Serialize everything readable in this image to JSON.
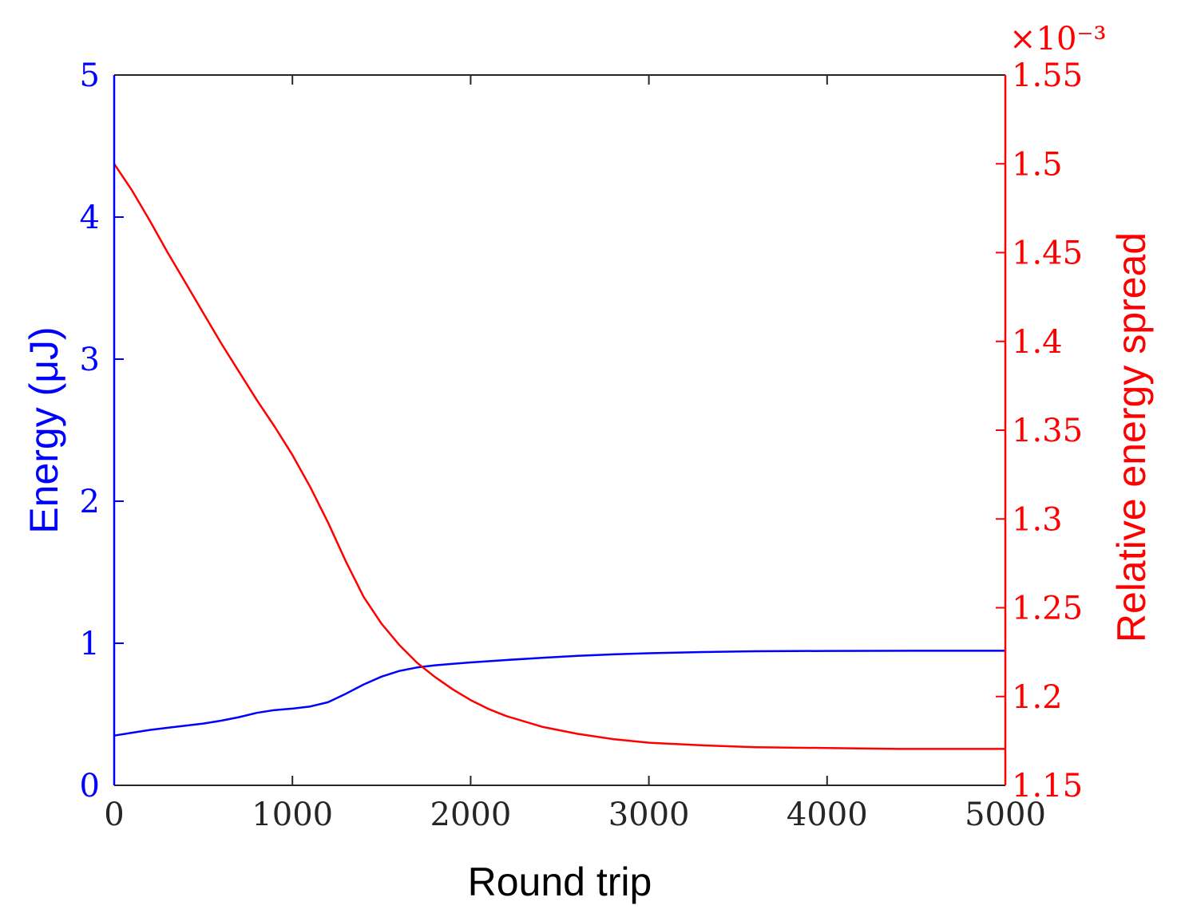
{
  "chart_data": {
    "type": "line",
    "xlabel": "Round trip",
    "ylabel_left": "Energy (μJ)",
    "ylabel_right": "Relative energy spread",
    "right_axis_multiplier": "×10⁻³",
    "xlim": [
      0,
      5000
    ],
    "ylim_left": [
      0,
      5
    ],
    "ylim_right": [
      1.15,
      1.55
    ],
    "x_ticks": [
      "0",
      "1000",
      "2000",
      "3000",
      "4000",
      "5000"
    ],
    "y_left_ticks": [
      "0",
      "1",
      "2",
      "3",
      "4",
      "5"
    ],
    "y_right_ticks": [
      "1.15",
      "1.2",
      "1.25",
      "1.3",
      "1.35",
      "1.4",
      "1.45",
      "1.5",
      "1.55"
    ],
    "grid": false,
    "colors": {
      "left": "#0000ff",
      "right": "#ff0000",
      "axis": "#262626"
    },
    "series": [
      {
        "axis": "left",
        "color": "#0000ff",
        "x": [
          0,
          100,
          200,
          300,
          400,
          500,
          600,
          700,
          800,
          900,
          1000,
          1100,
          1200,
          1300,
          1400,
          1500,
          1600,
          1700,
          1800,
          1900,
          2000,
          2200,
          2400,
          2600,
          2800,
          3000,
          3300,
          3600,
          4000,
          4500,
          5000
        ],
        "y": [
          0.35,
          0.37,
          0.39,
          0.405,
          0.42,
          0.435,
          0.455,
          0.48,
          0.51,
          0.53,
          0.54,
          0.555,
          0.585,
          0.645,
          0.71,
          0.765,
          0.805,
          0.83,
          0.845,
          0.855,
          0.865,
          0.882,
          0.898,
          0.912,
          0.922,
          0.93,
          0.938,
          0.944,
          0.946,
          0.947,
          0.947
        ]
      },
      {
        "axis": "right",
        "color": "#ff0000",
        "x": [
          0,
          100,
          200,
          300,
          400,
          500,
          600,
          700,
          800,
          900,
          1000,
          1100,
          1200,
          1300,
          1400,
          1500,
          1600,
          1700,
          1800,
          1900,
          2000,
          2100,
          2200,
          2400,
          2600,
          2800,
          3000,
          3300,
          3600,
          4000,
          4400,
          5000
        ],
        "y": [
          1.5,
          1.485,
          1.468,
          1.45,
          1.433,
          1.416,
          1.399,
          1.383,
          1.367,
          1.352,
          1.336,
          1.318,
          1.298,
          1.276,
          1.256,
          1.241,
          1.229,
          1.219,
          1.211,
          1.204,
          1.198,
          1.193,
          1.189,
          1.183,
          1.179,
          1.176,
          1.174,
          1.1725,
          1.1715,
          1.171,
          1.1705,
          1.1705
        ]
      }
    ]
  }
}
